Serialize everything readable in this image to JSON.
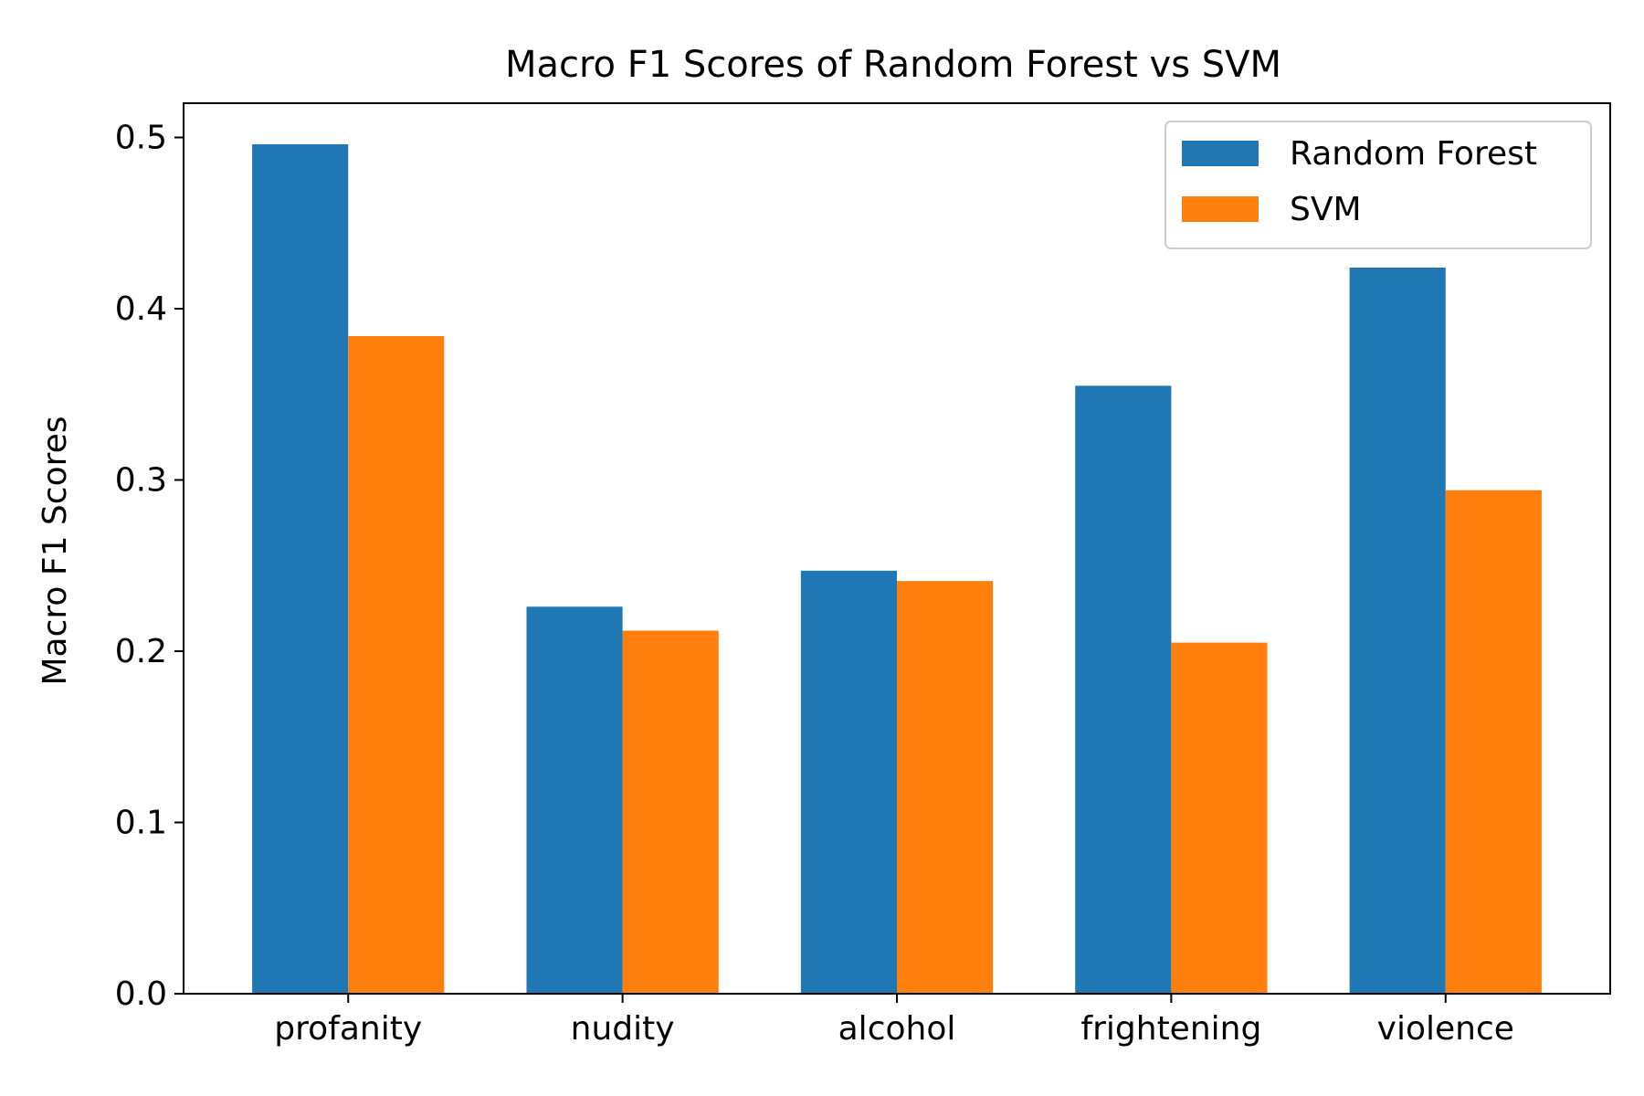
{
  "chart_data": {
    "type": "bar",
    "title": "Macro F1 Scores of Random Forest vs SVM",
    "xlabel": "",
    "ylabel": "Macro F1 Scores",
    "categories": [
      "profanity",
      "nudity",
      "alcohol",
      "frightening",
      "violence"
    ],
    "series": [
      {
        "name": "Random Forest",
        "color": "#1f77b4",
        "values": [
          0.496,
          0.226,
          0.247,
          0.355,
          0.424
        ]
      },
      {
        "name": "SVM",
        "color": "#ff7f0e",
        "values": [
          0.384,
          0.212,
          0.241,
          0.205,
          0.294
        ]
      }
    ],
    "ylim": [
      0,
      0.52
    ],
    "yticks": [
      0.0,
      0.1,
      0.2,
      0.3,
      0.4,
      0.5
    ],
    "ytick_labels": [
      "0.0",
      "0.1",
      "0.2",
      "0.3",
      "0.4",
      "0.5"
    ],
    "grid": false,
    "legend_position": "top-right"
  }
}
